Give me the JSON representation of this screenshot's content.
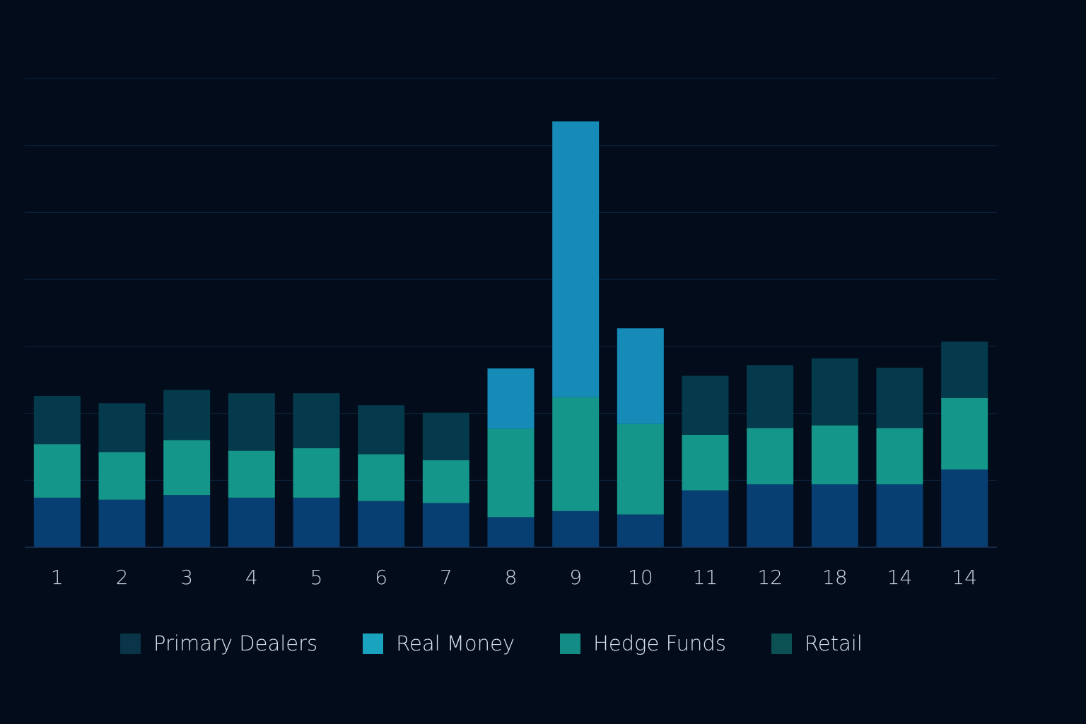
{
  "chart_data": {
    "type": "bar",
    "stacked": true,
    "categories": [
      "1",
      "2",
      "3",
      "4",
      "5",
      "6",
      "7",
      "8",
      "9",
      "10",
      "11",
      "12",
      "18",
      "14",
      "14"
    ],
    "ylim": [
      0,
      7
    ],
    "grid": true,
    "legend_position": "bottom",
    "series": [
      {
        "color": "#083f72",
        "values": [
          0.74,
          0.71,
          0.78,
          0.74,
          0.74,
          0.69,
          0.66,
          0.45,
          0.54,
          0.49,
          0.85,
          0.94,
          0.94,
          0.94,
          1.16
        ]
      },
      {
        "color": "#15968a",
        "values": [
          0.8,
          0.71,
          0.82,
          0.7,
          0.74,
          0.7,
          0.64,
          1.32,
          1.7,
          1.35,
          0.83,
          0.84,
          0.88,
          0.84,
          1.07
        ]
      },
      {
        "color": "#168bb8",
        "values": [
          0,
          0,
          0,
          0,
          0,
          0,
          0,
          0.9,
          4.12,
          1.43,
          0,
          0,
          0,
          0,
          0
        ]
      },
      {
        "color": "#053a4c",
        "values": [
          0.72,
          0.73,
          0.75,
          0.86,
          0.82,
          0.73,
          0.71,
          0,
          0,
          0,
          0.88,
          0.94,
          1.0,
          0.9,
          0.84
        ]
      }
    ]
  },
  "legend": {
    "items": [
      {
        "label": "Primary Dealers",
        "color": "#0a3448"
      },
      {
        "label": "Real Money",
        "color": "#1aa3bf"
      },
      {
        "label": "Hedge Funds",
        "color": "#128c84"
      },
      {
        "label": "Retail",
        "color": "#0b5154"
      }
    ]
  }
}
